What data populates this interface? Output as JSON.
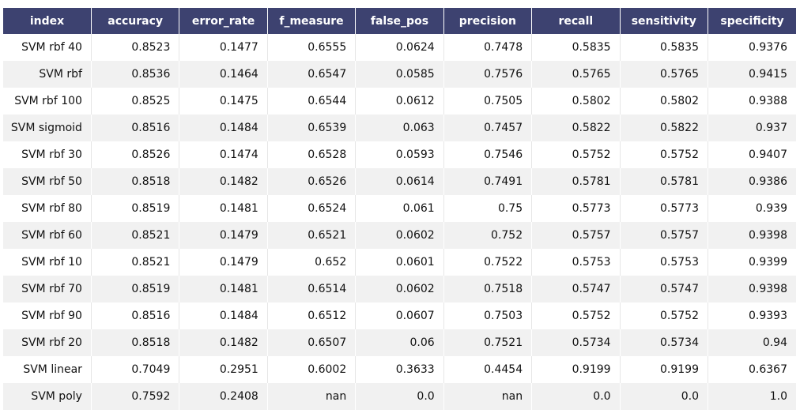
{
  "chart_data": {
    "type": "table",
    "columns": [
      "index",
      "accuracy",
      "error_rate",
      "f_measure",
      "false_pos",
      "precision",
      "recall",
      "sensitivity",
      "specificity"
    ],
    "rows": [
      [
        "SVM rbf 40",
        "0.8523",
        "0.1477",
        "0.6555",
        "0.0624",
        "0.7478",
        "0.5835",
        "0.5835",
        "0.9376"
      ],
      [
        "SVM rbf",
        "0.8536",
        "0.1464",
        "0.6547",
        "0.0585",
        "0.7576",
        "0.5765",
        "0.5765",
        "0.9415"
      ],
      [
        "SVM rbf 100",
        "0.8525",
        "0.1475",
        "0.6544",
        "0.0612",
        "0.7505",
        "0.5802",
        "0.5802",
        "0.9388"
      ],
      [
        "SVM sigmoid",
        "0.8516",
        "0.1484",
        "0.6539",
        "0.063",
        "0.7457",
        "0.5822",
        "0.5822",
        "0.937"
      ],
      [
        "SVM rbf 30",
        "0.8526",
        "0.1474",
        "0.6528",
        "0.0593",
        "0.7546",
        "0.5752",
        "0.5752",
        "0.9407"
      ],
      [
        "SVM rbf 50",
        "0.8518",
        "0.1482",
        "0.6526",
        "0.0614",
        "0.7491",
        "0.5781",
        "0.5781",
        "0.9386"
      ],
      [
        "SVM rbf 80",
        "0.8519",
        "0.1481",
        "0.6524",
        "0.061",
        "0.75",
        "0.5773",
        "0.5773",
        "0.939"
      ],
      [
        "SVM rbf 60",
        "0.8521",
        "0.1479",
        "0.6521",
        "0.0602",
        "0.752",
        "0.5757",
        "0.5757",
        "0.9398"
      ],
      [
        "SVM rbf 10",
        "0.8521",
        "0.1479",
        "0.652",
        "0.0601",
        "0.7522",
        "0.5753",
        "0.5753",
        "0.9399"
      ],
      [
        "SVM rbf 70",
        "0.8519",
        "0.1481",
        "0.6514",
        "0.0602",
        "0.7518",
        "0.5747",
        "0.5747",
        "0.9398"
      ],
      [
        "SVM rbf 90",
        "0.8516",
        "0.1484",
        "0.6512",
        "0.0607",
        "0.7503",
        "0.5752",
        "0.5752",
        "0.9393"
      ],
      [
        "SVM rbf 20",
        "0.8518",
        "0.1482",
        "0.6507",
        "0.06",
        "0.7521",
        "0.5734",
        "0.5734",
        "0.94"
      ],
      [
        "SVM linear",
        "0.7049",
        "0.2951",
        "0.6002",
        "0.3633",
        "0.4454",
        "0.9199",
        "0.9199",
        "0.6367"
      ],
      [
        "SVM poly",
        "0.7592",
        "0.2408",
        "nan",
        "0.0",
        "nan",
        "0.0",
        "0.0",
        "1.0"
      ]
    ],
    "header_color": "#3d4270",
    "stripe_color": "#f1f1f1"
  }
}
